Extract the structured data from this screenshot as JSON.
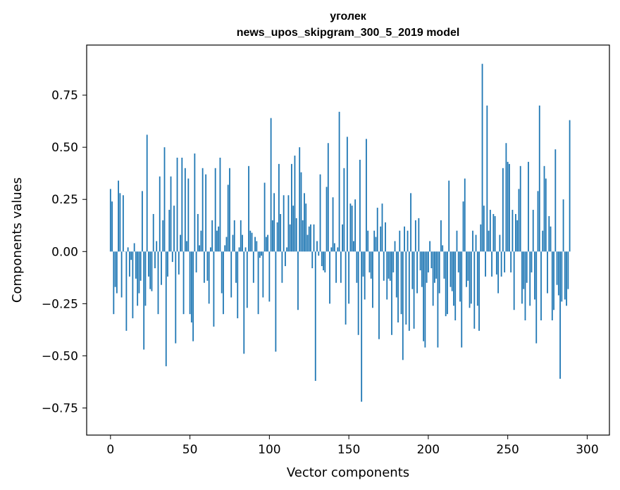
{
  "chart_data": {
    "type": "bar",
    "title_line1": "уголек",
    "title_line2": "news_upos_skipgram_300_5_2019 model",
    "xlabel": "Vector components",
    "ylabel": "Components values",
    "xlim": [
      -15,
      314
    ],
    "ylim": [
      -0.88,
      0.99
    ],
    "x_ticks": [
      0,
      50,
      100,
      150,
      200,
      250,
      300
    ],
    "x_tick_labels": [
      "0",
      "50",
      "100",
      "150",
      "200",
      "250",
      "300"
    ],
    "y_ticks": [
      -0.75,
      -0.5,
      -0.25,
      0.0,
      0.25,
      0.5,
      0.75
    ],
    "y_tick_labels": [
      "−0.75",
      "−0.50",
      "−0.25",
      "0.00",
      "0.25",
      "0.50",
      "0.75"
    ],
    "color": "#1f77b4",
    "values": [
      0.3,
      0.24,
      -0.3,
      -0.17,
      -0.2,
      0.34,
      0.28,
      -0.22,
      0.27,
      0.0,
      -0.38,
      0.02,
      -0.12,
      -0.04,
      -0.32,
      0.04,
      -0.13,
      -0.26,
      -0.2,
      -0.14,
      0.29,
      -0.47,
      -0.26,
      0.56,
      -0.12,
      -0.18,
      -0.19,
      0.18,
      -0.08,
      0.05,
      -0.3,
      0.36,
      -0.16,
      0.15,
      0.5,
      -0.55,
      -0.12,
      0.2,
      0.36,
      -0.05,
      0.22,
      -0.44,
      0.45,
      -0.11,
      0.08,
      0.45,
      -0.3,
      0.4,
      0.05,
      0.35,
      -0.3,
      -0.34,
      -0.43,
      0.47,
      -0.1,
      0.18,
      0.03,
      0.1,
      0.4,
      -0.15,
      0.37,
      -0.14,
      -0.25,
      0.02,
      0.15,
      -0.36,
      0.4,
      0.1,
      0.12,
      0.45,
      -0.2,
      -0.3,
      0.03,
      0.07,
      0.32,
      0.4,
      -0.22,
      0.08,
      0.15,
      -0.15,
      -0.32,
      0.02,
      0.15,
      0.08,
      -0.49,
      0.02,
      -0.27,
      0.41,
      0.1,
      0.09,
      -0.15,
      0.07,
      0.05,
      -0.3,
      -0.03,
      -0.02,
      -0.22,
      0.33,
      0.07,
      0.08,
      -0.24,
      0.64,
      0.15,
      0.28,
      -0.48,
      0.14,
      0.42,
      0.18,
      -0.15,
      0.27,
      -0.07,
      0.02,
      0.27,
      0.13,
      0.42,
      0.22,
      0.46,
      0.16,
      -0.28,
      0.5,
      0.38,
      0.15,
      0.28,
      0.23,
      0.08,
      0.12,
      0.13,
      -0.08,
      0.13,
      -0.62,
      0.05,
      -0.02,
      0.37,
      -0.07,
      -0.09,
      -0.1,
      0.31,
      0.52,
      -0.25,
      0.02,
      0.26,
      0.04,
      -0.15,
      0.02,
      0.67,
      -0.15,
      0.13,
      0.4,
      -0.35,
      0.55,
      -0.25,
      0.23,
      0.22,
      0.05,
      0.25,
      -0.15,
      -0.4,
      0.44,
      -0.72,
      -0.12,
      -0.23,
      0.54,
      0.1,
      -0.1,
      -0.13,
      -0.27,
      0.1,
      0.07,
      0.21,
      -0.42,
      0.12,
      0.23,
      -0.14,
      0.14,
      -0.23,
      -0.13,
      -0.14,
      -0.4,
      -0.1,
      0.05,
      -0.22,
      -0.34,
      0.1,
      -0.3,
      -0.52,
      0.12,
      -0.35,
      0.1,
      -0.38,
      0.28,
      -0.18,
      -0.37,
      0.15,
      -0.2,
      0.16,
      -0.09,
      -0.17,
      -0.43,
      -0.46,
      -0.15,
      -0.1,
      0.05,
      -0.08,
      -0.26,
      -0.15,
      -0.13,
      -0.46,
      -0.2,
      0.15,
      0.03,
      -0.13,
      -0.31,
      -0.3,
      0.34,
      -0.17,
      -0.19,
      -0.26,
      -0.33,
      0.1,
      -0.1,
      -0.24,
      -0.46,
      0.24,
      0.35,
      -0.17,
      -0.14,
      -0.27,
      -0.25,
      0.1,
      -0.37,
      0.08,
      -0.26,
      -0.38,
      0.13,
      0.9,
      0.22,
      -0.12,
      0.7,
      0.1,
      0.2,
      -0.12,
      0.18,
      0.17,
      -0.11,
      -0.2,
      0.08,
      -0.12,
      0.4,
      -0.1,
      0.52,
      0.43,
      0.42,
      -0.1,
      0.2,
      -0.28,
      0.18,
      0.15,
      0.3,
      0.41,
      -0.25,
      -0.18,
      -0.33,
      -0.15,
      0.43,
      -0.26,
      -0.1,
      0.2,
      -0.23,
      -0.44,
      0.29,
      0.7,
      -0.33,
      0.1,
      0.41,
      0.35,
      -0.2,
      0.17,
      0.12,
      -0.33,
      -0.28,
      0.49,
      -0.16,
      -0.21,
      -0.61,
      -0.24,
      0.25,
      -0.23,
      -0.26,
      -0.18,
      0.63
    ]
  }
}
